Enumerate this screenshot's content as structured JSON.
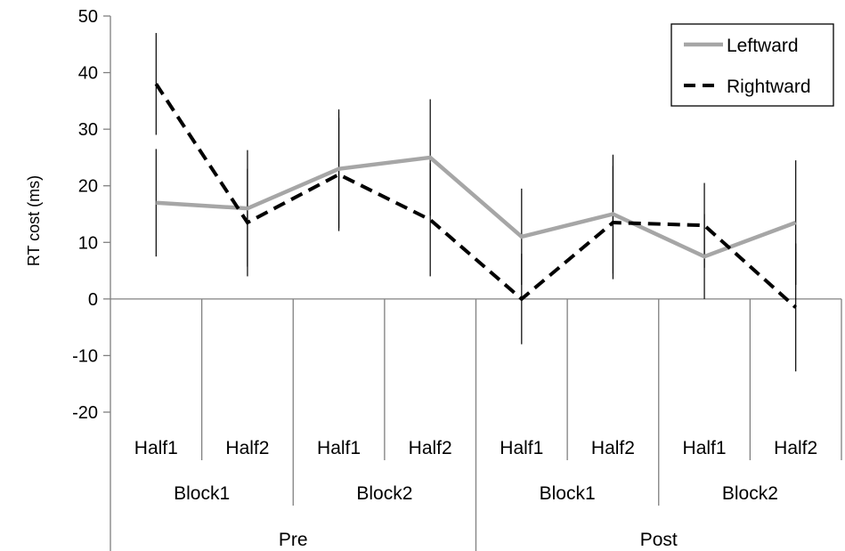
{
  "chart_data": {
    "type": "line",
    "ylabel": "RT cost (ms)",
    "ylim": [
      -20,
      50
    ],
    "yticks": [
      50,
      40,
      30,
      20,
      10,
      0,
      -10,
      -20
    ],
    "grid": false,
    "legend_position": "top-right",
    "x_levels": {
      "half": [
        "Half1",
        "Half2",
        "Half1",
        "Half2",
        "Half1",
        "Half2",
        "Half1",
        "Half2"
      ],
      "block": [
        "Block1",
        "Block2",
        "Block1",
        "Block2"
      ],
      "session": [
        "Pre",
        "Post"
      ]
    },
    "series": [
      {
        "name": "Leftward",
        "color": "#a6a6a6",
        "style": "solid",
        "values": [
          17,
          16,
          23,
          25,
          11,
          15,
          7.5,
          13.5
        ],
        "error": [
          9.5,
          10.3,
          10.5,
          10.3,
          8.5,
          10.5,
          7.5,
          11
        ]
      },
      {
        "name": "Rightward",
        "color": "#000000",
        "style": "dashed",
        "values": [
          38,
          13.5,
          22,
          14,
          0,
          13.5,
          13,
          -1.5
        ],
        "error": [
          9,
          9.5,
          10,
          10,
          8,
          10,
          7.5,
          11.3
        ]
      }
    ]
  }
}
